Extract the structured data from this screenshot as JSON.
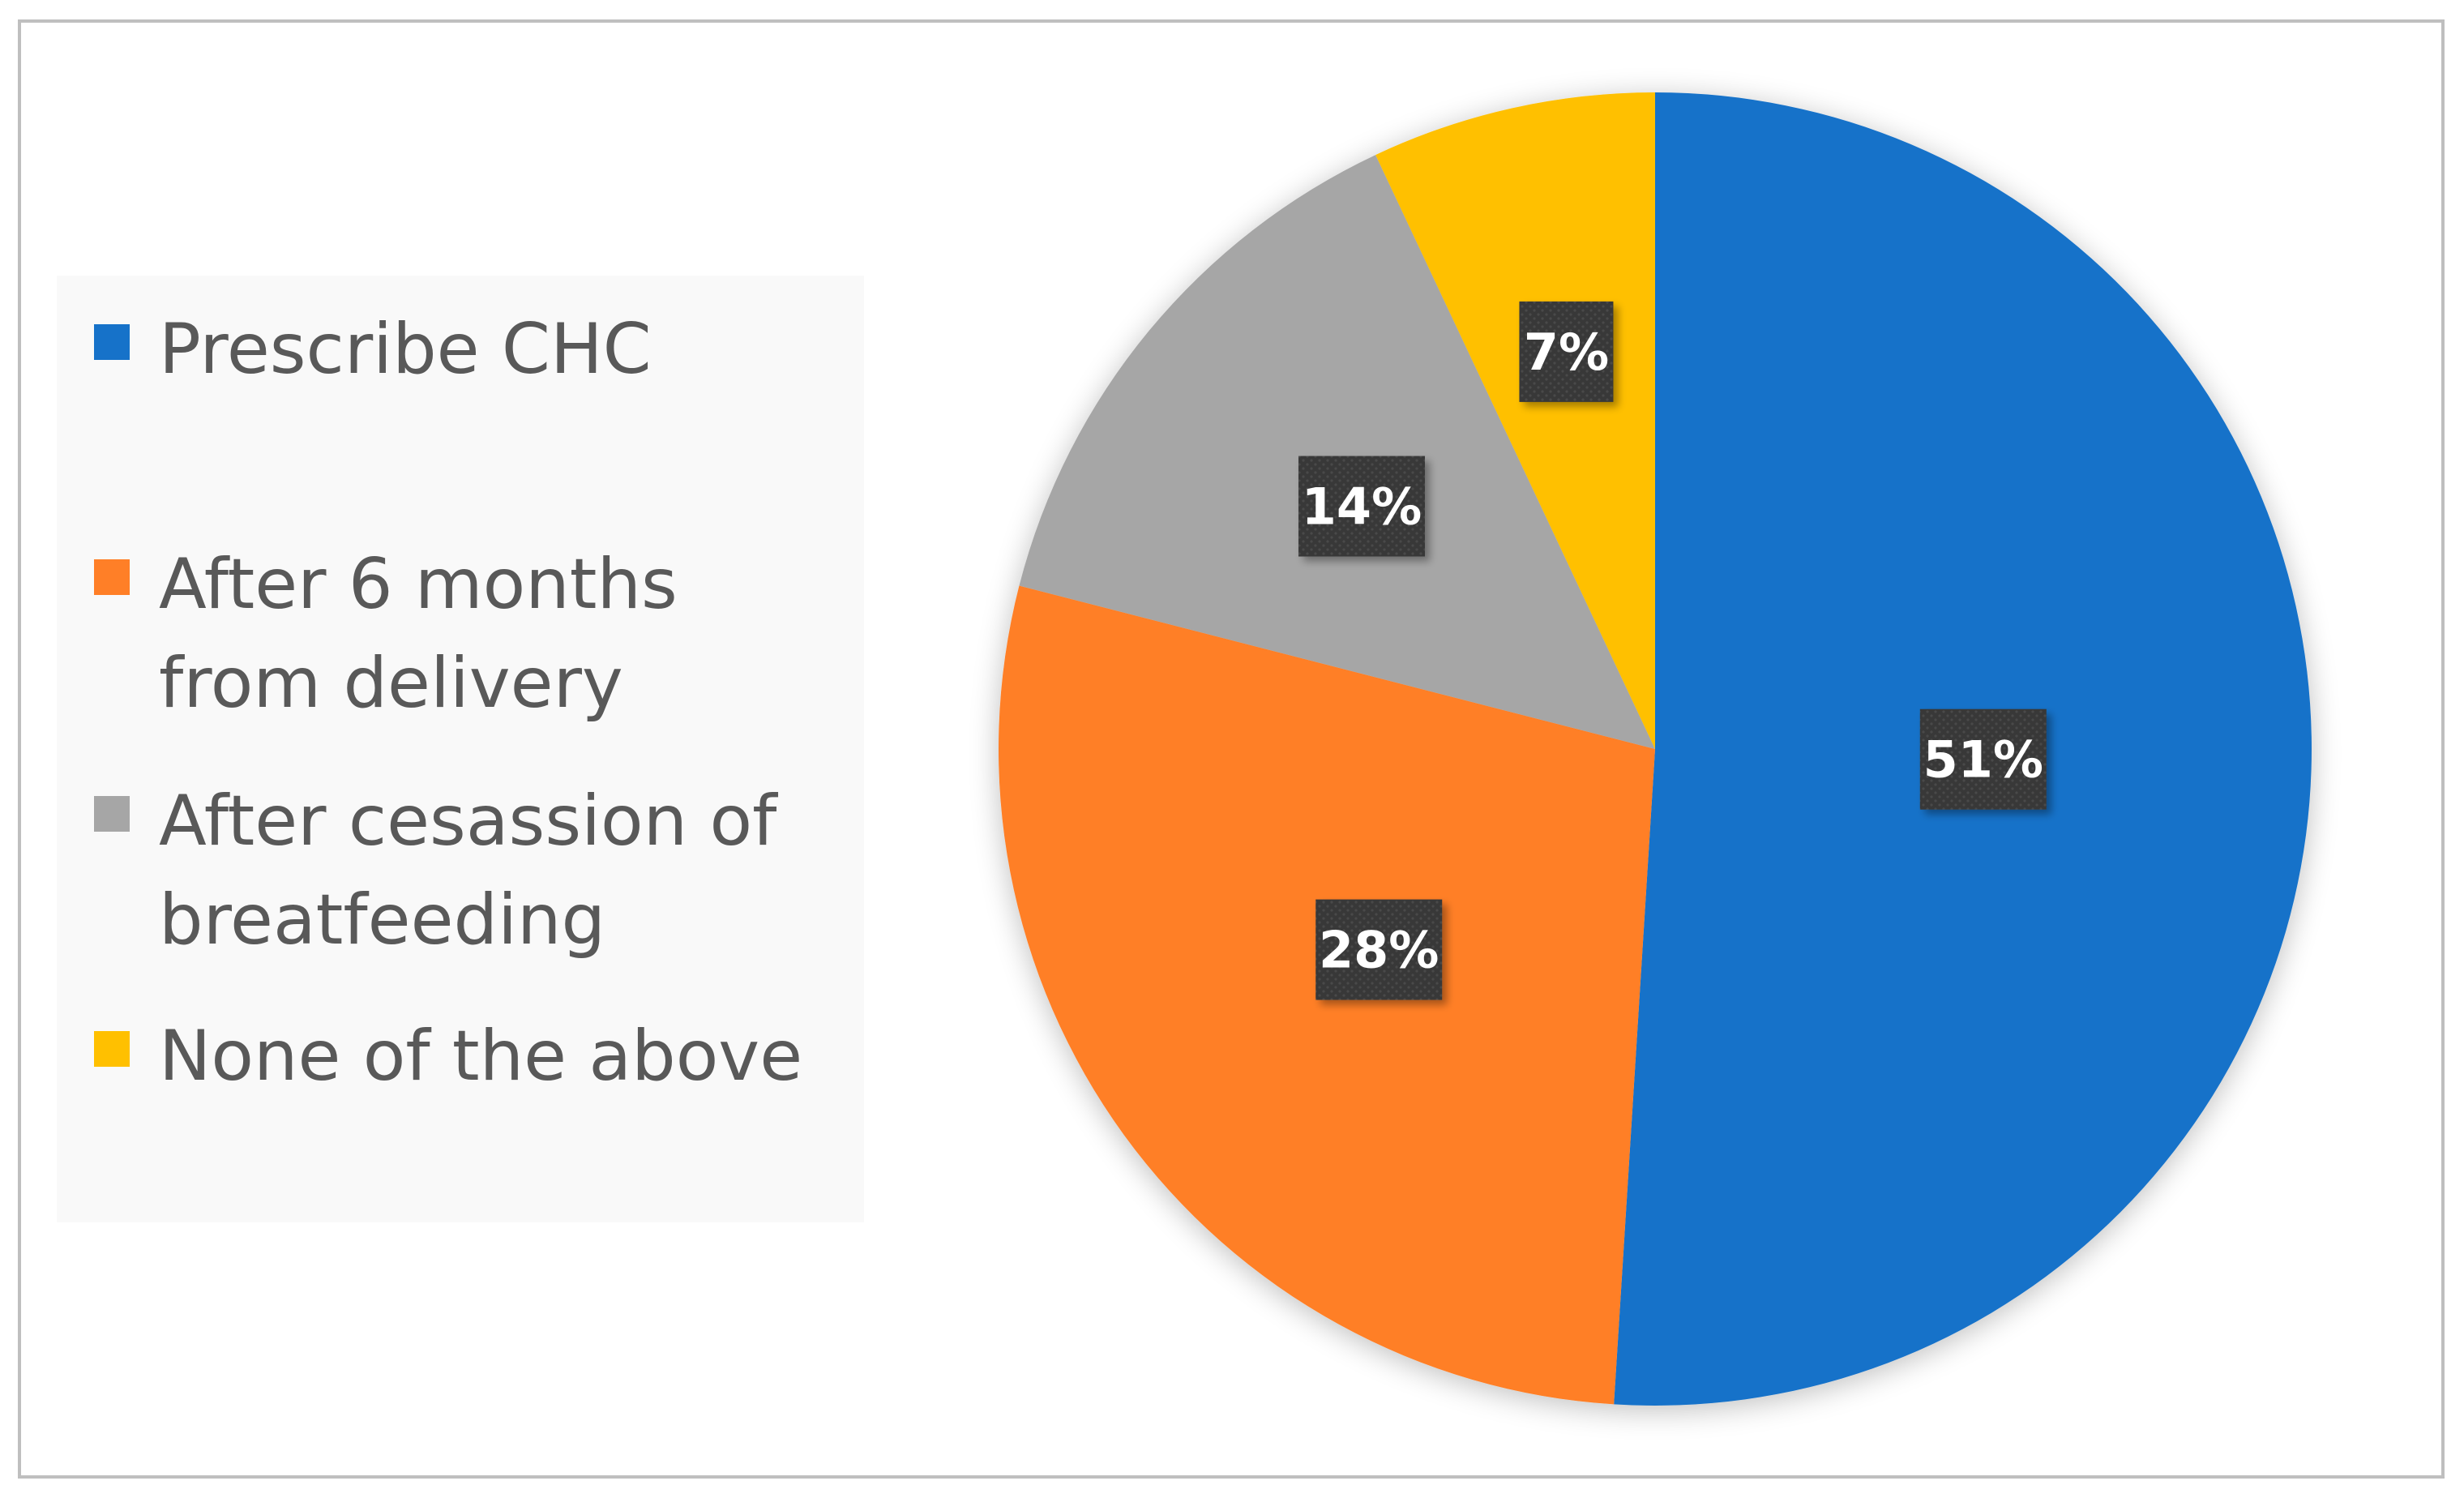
{
  "chart_data": {
    "type": "pie",
    "categories": [
      "Prescribe CHC",
      "After 6 months from delivery",
      "After cesassion of breatfeeding",
      "None of the above"
    ],
    "values": [
      51,
      28,
      14,
      7
    ],
    "labels": [
      "51%",
      "28%",
      "14%",
      "7%"
    ],
    "colors": [
      "#1672C9",
      "#FF7F27",
      "#A6A6A6",
      "#FFC000"
    ],
    "legend_position": "left"
  },
  "legend": {
    "items": [
      {
        "label": "Prescribe CHC",
        "color": "#1672C9"
      },
      {
        "label": "After 6 months from delivery",
        "color": "#FF7F27"
      },
      {
        "label": "After cesassion of breatfeeding",
        "color": "#A6A6A6"
      },
      {
        "label": "None of the above",
        "color": "#FFC000"
      }
    ]
  }
}
